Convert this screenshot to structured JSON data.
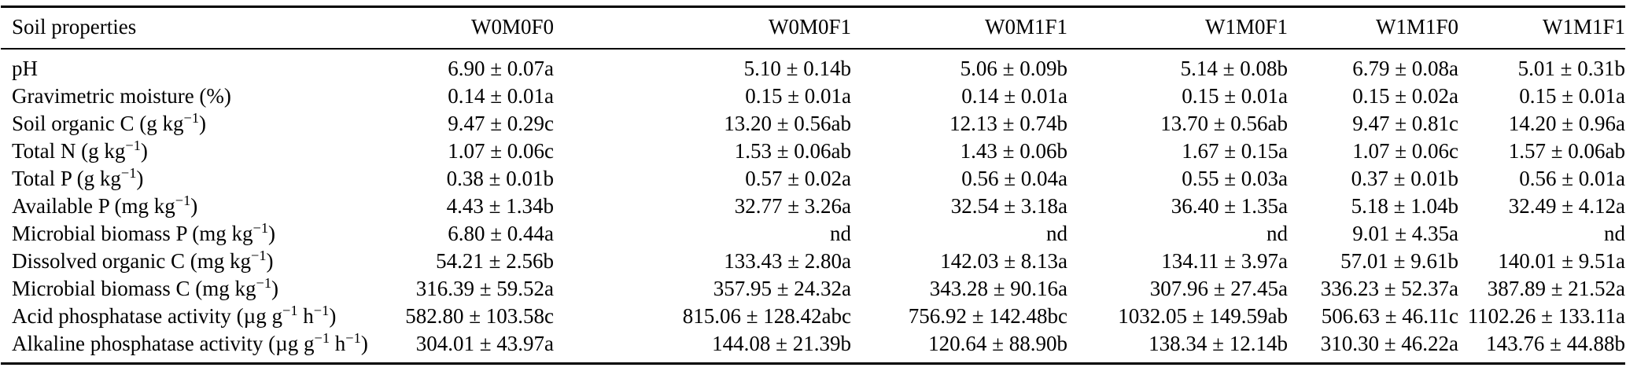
{
  "table": {
    "columns": [
      "Soil properties",
      "W0M0F0",
      "W0M0F1",
      "W0M1F1",
      "W1M0F1",
      "W1M1F0",
      "W1M1F1"
    ],
    "rows": [
      {
        "label": "pH",
        "values": [
          "6.90 ± 0.07a",
          "5.10 ± 0.14b",
          "5.06 ± 0.09b",
          "5.14 ± 0.08b",
          "6.79 ± 0.08a",
          "5.01 ± 0.31b"
        ]
      },
      {
        "label": "Gravimetric moisture (%)",
        "values": [
          "0.14 ± 0.01a",
          "0.15 ± 0.01a",
          "0.14 ± 0.01a",
          "0.15 ± 0.01a",
          "0.15 ± 0.02a",
          "0.15 ± 0.01a"
        ]
      },
      {
        "label": "Soil organic C (g kg⁻¹)",
        "values": [
          "9.47 ± 0.29c",
          "13.20 ± 0.56ab",
          "12.13 ± 0.74b",
          "13.70 ± 0.56ab",
          "9.47 ± 0.81c",
          "14.20 ± 0.96a"
        ]
      },
      {
        "label": "Total N (g kg⁻¹)",
        "values": [
          "1.07 ± 0.06c",
          "1.53 ± 0.06ab",
          "1.43 ± 0.06b",
          "1.67 ± 0.15a",
          "1.07 ± 0.06c",
          "1.57 ± 0.06ab"
        ]
      },
      {
        "label": "Total P (g kg⁻¹)",
        "values": [
          "0.38 ± 0.01b",
          "0.57 ± 0.02a",
          "0.56 ± 0.04a",
          "0.55 ± 0.03a",
          "0.37 ± 0.01b",
          "0.56 ± 0.01a"
        ]
      },
      {
        "label": "Available P (mg kg⁻¹)",
        "values": [
          "4.43 ± 1.34b",
          "32.77 ± 3.26a",
          "32.54 ± 3.18a",
          "36.40 ± 1.35a",
          "5.18 ± 1.04b",
          "32.49 ± 4.12a"
        ]
      },
      {
        "label": "Microbial biomass P (mg kg⁻¹)",
        "values": [
          "6.80 ± 0.44a",
          "nd",
          "nd",
          "nd",
          "9.01 ± 4.35a",
          "nd"
        ]
      },
      {
        "label": "Dissolved organic C (mg kg⁻¹)",
        "values": [
          "54.21 ± 2.56b",
          "133.43 ± 2.80a",
          "142.03 ± 8.13a",
          "134.11 ± 3.97a",
          "57.01 ± 9.61b",
          "140.01 ± 9.51a"
        ]
      },
      {
        "label": "Microbial biomass C (mg kg⁻¹)",
        "values": [
          "316.39 ± 59.52a",
          "357.95 ± 24.32a",
          "343.28 ± 90.16a",
          "307.96 ± 27.45a",
          "336.23 ± 52.37a",
          "387.89 ± 21.52a"
        ]
      },
      {
        "label": "Acid phosphatase activity (µg g⁻¹ h⁻¹)",
        "values": [
          "582.80 ± 103.58c",
          "815.06 ± 128.42abc",
          "756.92 ± 142.48bc",
          "1032.05 ± 149.59ab",
          "506.63 ± 46.11c",
          "1102.26 ± 133.11a"
        ]
      },
      {
        "label": "Alkaline phosphatase activity (µg g⁻¹ h⁻¹)",
        "values": [
          "304.01 ± 43.97a",
          "144.08 ± 21.39b",
          "120.64 ± 88.90b",
          "138.34 ± 12.14b",
          "310.30 ± 46.22a",
          "143.76 ± 44.88b"
        ]
      }
    ]
  },
  "colors": {
    "text": "#000000",
    "background": "#ffffff",
    "rule": "#000000"
  }
}
